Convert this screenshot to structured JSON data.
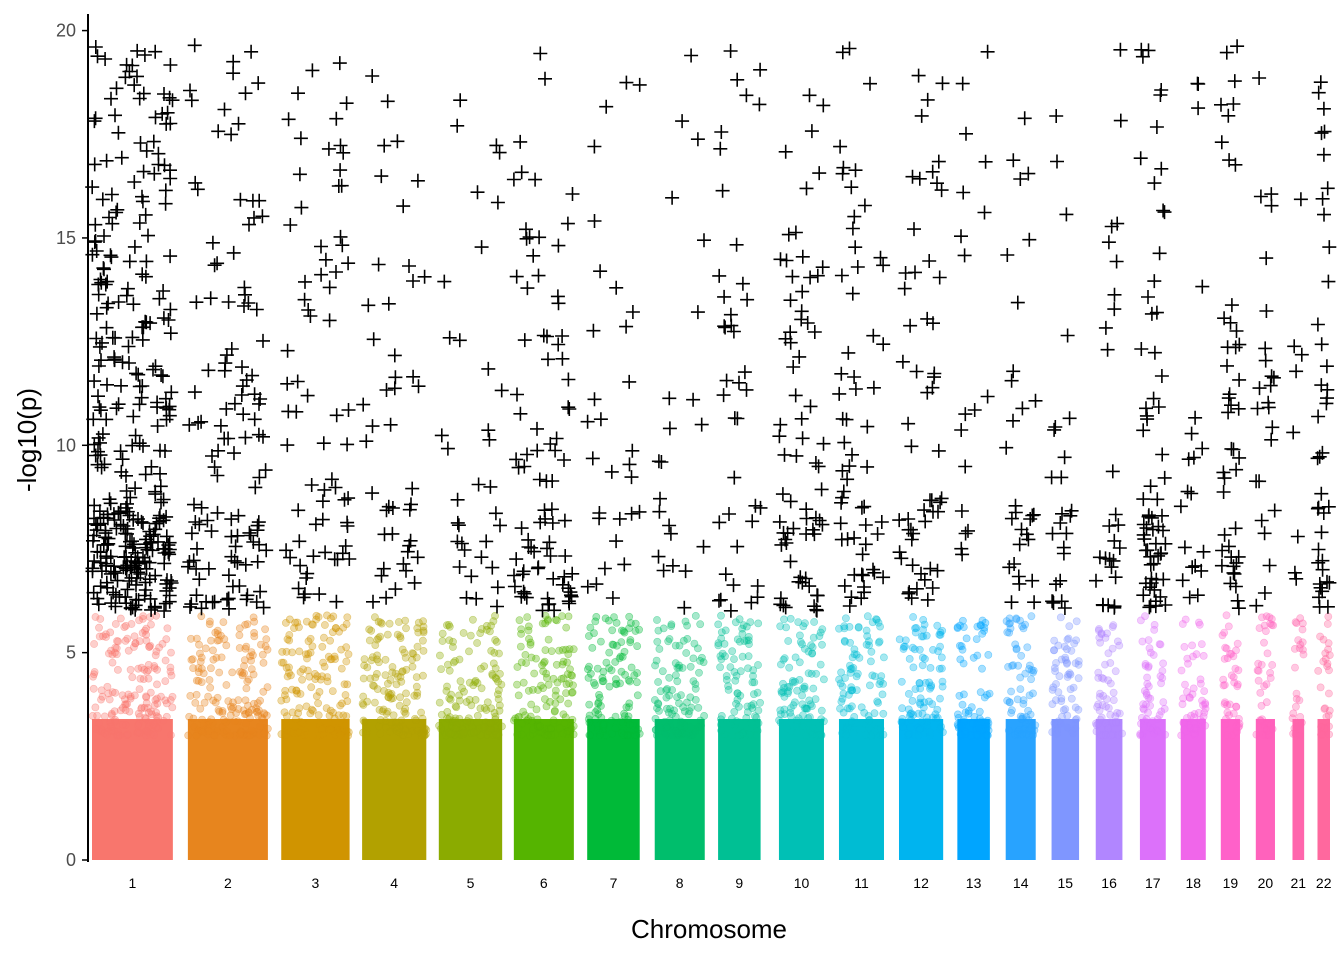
{
  "chart_data": {
    "type": "scatter",
    "kind": "manhattan",
    "xlabel": "Chromosome",
    "ylabel": "-log10(p)",
    "ylim": [
      0,
      20.4
    ],
    "yticks": [
      0,
      5,
      10,
      15,
      20
    ],
    "significance_marker": "+",
    "grid": false,
    "legend": "none",
    "chromosomes": [
      {
        "label": "1",
        "x_start": 0.0,
        "x_end": 0.97,
        "color": "#F8766D"
      },
      {
        "label": "2",
        "x_start": 1.15,
        "x_end": 2.11,
        "color": "#E7851E"
      },
      {
        "label": "3",
        "x_start": 2.27,
        "x_end": 3.09,
        "color": "#D09400"
      },
      {
        "label": "4",
        "x_start": 3.24,
        "x_end": 4.01,
        "color": "#B2A100"
      },
      {
        "label": "5",
        "x_start": 4.16,
        "x_end": 4.92,
        "color": "#8BAB00"
      },
      {
        "label": "6",
        "x_start": 5.06,
        "x_end": 5.78,
        "color": "#55B400"
      },
      {
        "label": "7",
        "x_start": 5.94,
        "x_end": 6.57,
        "color": "#00BA38"
      },
      {
        "label": "8",
        "x_start": 6.75,
        "x_end": 7.35,
        "color": "#00BE6C"
      },
      {
        "label": "9",
        "x_start": 7.51,
        "x_end": 8.02,
        "color": "#00C094"
      },
      {
        "label": "10",
        "x_start": 8.24,
        "x_end": 8.78,
        "color": "#00C0B5"
      },
      {
        "label": "11",
        "x_start": 8.96,
        "x_end": 9.5,
        "color": "#00BCD3"
      },
      {
        "label": "12",
        "x_start": 9.68,
        "x_end": 10.21,
        "color": "#00B4EF"
      },
      {
        "label": "13",
        "x_start": 10.38,
        "x_end": 10.77,
        "color": "#00A5FF"
      },
      {
        "label": "14",
        "x_start": 10.96,
        "x_end": 11.32,
        "color": "#28A3FF"
      },
      {
        "label": "15",
        "x_start": 11.51,
        "x_end": 11.84,
        "color": "#7F96FF"
      },
      {
        "label": "16",
        "x_start": 12.04,
        "x_end": 12.36,
        "color": "#B186FF"
      },
      {
        "label": "17",
        "x_start": 12.57,
        "x_end": 12.88,
        "color": "#DC71FA"
      },
      {
        "label": "18",
        "x_start": 13.06,
        "x_end": 13.36,
        "color": "#F066EA"
      },
      {
        "label": "19",
        "x_start": 13.54,
        "x_end": 13.77,
        "color": "#FF61C9"
      },
      {
        "label": "20",
        "x_start": 13.96,
        "x_end": 14.19,
        "color": "#FF62BC"
      },
      {
        "label": "21",
        "x_start": 14.4,
        "x_end": 14.54,
        "color": "#FF65AC"
      },
      {
        "label": "22",
        "x_start": 14.7,
        "x_end": 14.85,
        "color": "#FF689E"
      }
    ],
    "significance_threshold": 6,
    "background_ceiling": 4,
    "significant_points_by_chromosome": [
      {
        "label": "1",
        "count": 330
      },
      {
        "label": "2",
        "count": 120
      },
      {
        "label": "3",
        "count": 70
      },
      {
        "label": "4",
        "count": 45
      },
      {
        "label": "5",
        "count": 35
      },
      {
        "label": "6",
        "count": 85
      },
      {
        "label": "7",
        "count": 30
      },
      {
        "label": "8",
        "count": 22
      },
      {
        "label": "9",
        "count": 40
      },
      {
        "label": "10",
        "count": 70
      },
      {
        "label": "11",
        "count": 60
      },
      {
        "label": "12",
        "count": 55
      },
      {
        "label": "13",
        "count": 18
      },
      {
        "label": "14",
        "count": 30
      },
      {
        "label": "15",
        "count": 25
      },
      {
        "label": "16",
        "count": 28
      },
      {
        "label": "17",
        "count": 65
      },
      {
        "label": "18",
        "count": 20
      },
      {
        "label": "19",
        "count": 45
      },
      {
        "label": "20",
        "count": 25
      },
      {
        "label": "21",
        "count": 8
      },
      {
        "label": "22",
        "count": 40
      }
    ]
  }
}
